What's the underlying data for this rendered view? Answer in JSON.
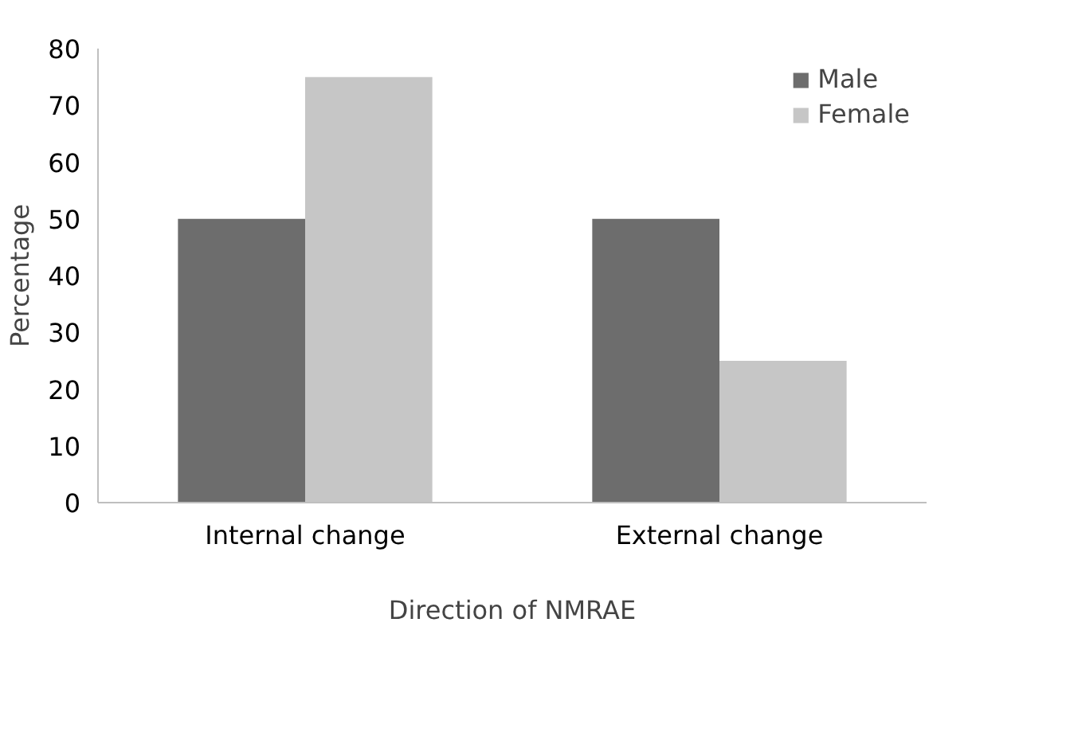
{
  "chart_data": {
    "type": "bar",
    "xlabel": "Direction of NMRAE",
    "ylabel": "Percentage",
    "categories": [
      "Internal change",
      "External change"
    ],
    "series": [
      {
        "name": "Male",
        "color": "#6d6d6d",
        "values": [
          50,
          50
        ]
      },
      {
        "name": "Female",
        "color": "#c6c6c6",
        "values": [
          75,
          25
        ]
      }
    ],
    "ylim": [
      0,
      80
    ],
    "yticks": [
      0,
      10,
      20,
      30,
      40,
      50,
      60,
      70,
      80
    ],
    "grid": false,
    "legend": "top right"
  }
}
